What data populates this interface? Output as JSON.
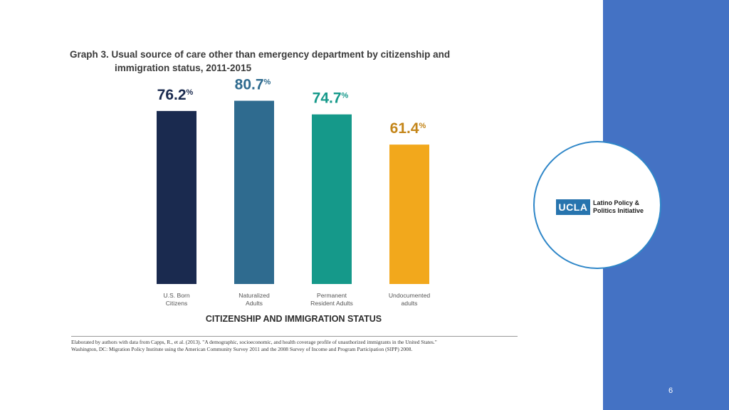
{
  "slide": {
    "page_number": "6"
  },
  "logo": {
    "ucla": "UCLA",
    "line1": "Latino Policy &",
    "line2": "Politics Initiative"
  },
  "chart_data": {
    "type": "bar",
    "title_line1": "Graph 3. Usual source of care other than emergency department by citizenship and",
    "title_line2": "immigration status, 2011-2015",
    "xlabel": "CITIZENSHIP AND IMMIGRATION STATUS",
    "ylabel": "",
    "ylim": [
      0,
      100
    ],
    "grid": false,
    "categories": [
      [
        "U.S. Born",
        "Citizens"
      ],
      [
        "Naturalized",
        "Adults"
      ],
      [
        "Permanent",
        "Resident Adults"
      ],
      [
        "Undocumented",
        "adults"
      ]
    ],
    "values": [
      76.2,
      80.7,
      74.7,
      61.4
    ],
    "labels": [
      "76.2",
      "80.7",
      "74.7",
      "61.4"
    ],
    "unit": "%",
    "colors": [
      "#1a2a4f",
      "#2f6b8f",
      "#15998a",
      "#f2a81c"
    ],
    "label_colors": [
      "#1a2a4f",
      "#2f6b8f",
      "#15998a",
      "#c4861a"
    ],
    "source_line1": "Elaborated by authors with data from Capps, R., et al. (2013). \"A demographic, socioeconomic, and health coverage profile of unauthorized immigrants in the United States.\"",
    "source_line2": "Washington, DC: Migration Policy Institute using the American Community Survey 2011 and the 2008 Survey of Income and Program Participation (SIPP) 2008."
  }
}
